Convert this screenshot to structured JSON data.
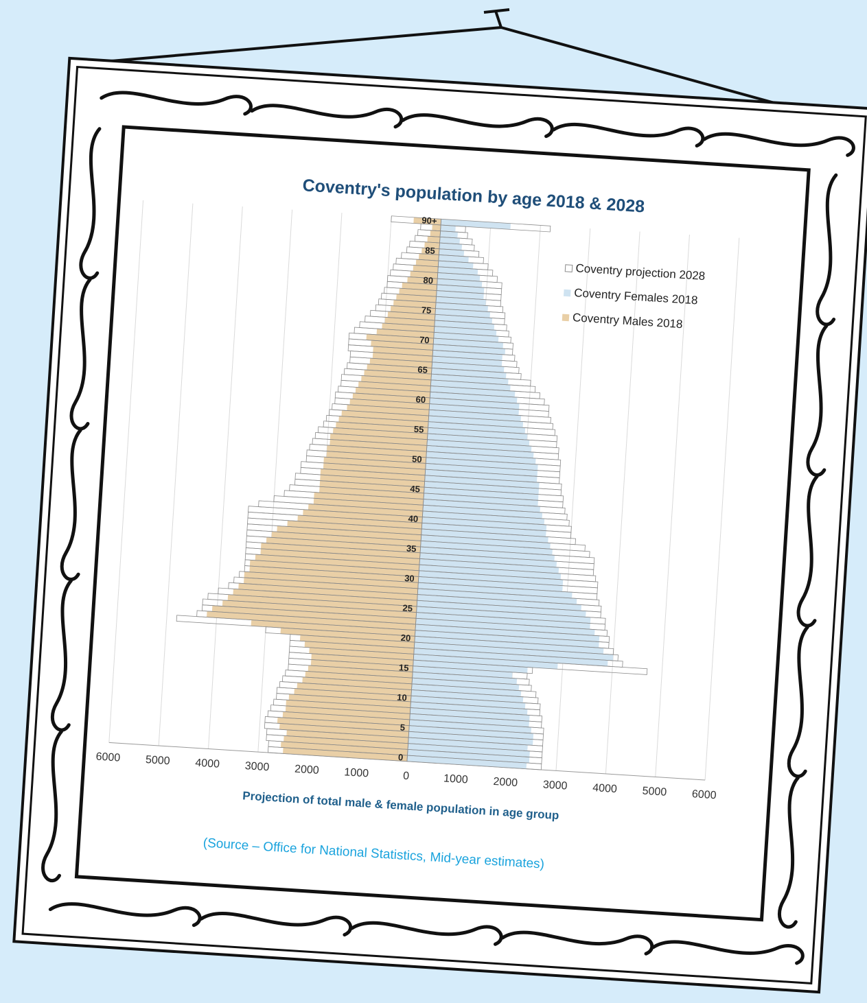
{
  "chart_data": {
    "type": "pyramid",
    "title": "Coventry's population by age 2018 & 2028",
    "xlabel": "Projection of total male & female population in age group",
    "source": "(Source – Office for National Statistics, Mid-year estimates)",
    "categories": [
      "0",
      null,
      null,
      null,
      null,
      "5",
      null,
      null,
      null,
      null,
      "10",
      null,
      null,
      null,
      null,
      "15",
      null,
      null,
      null,
      null,
      "20",
      null,
      null,
      null,
      null,
      "25",
      null,
      null,
      null,
      null,
      "30",
      null,
      null,
      null,
      null,
      "35",
      null,
      null,
      null,
      null,
      "40",
      null,
      null,
      null,
      null,
      "45",
      null,
      null,
      null,
      null,
      "50",
      null,
      null,
      null,
      null,
      "55",
      null,
      null,
      null,
      null,
      "60",
      null,
      null,
      null,
      null,
      "65",
      null,
      null,
      null,
      null,
      "70",
      null,
      null,
      null,
      null,
      "75",
      null,
      null,
      null,
      null,
      "80",
      null,
      null,
      null,
      null,
      "85",
      null,
      null,
      null,
      null,
      "90+"
    ],
    "series": [
      {
        "name": "Coventry projection 2028",
        "color": "#ffffff",
        "stroke": "#8a8a8a",
        "male": [
          -2800,
          -2800,
          -2850,
          -2850,
          -2900,
          -2900,
          -2850,
          -2800,
          -2750,
          -2700,
          -2700,
          -2650,
          -2600,
          -2550,
          -2500,
          -2500,
          -2500,
          -2500,
          -2500,
          -2500,
          -3000,
          -4800,
          -4400,
          -4300,
          -4300,
          -4200,
          -4000,
          -3800,
          -3700,
          -3600,
          -3500,
          -3500,
          -3500,
          -3500,
          -3500,
          -3500,
          -3500,
          -3500,
          -3500,
          -3500,
          -3500,
          -3300,
          -3000,
          -2800,
          -2700,
          -2600,
          -2600,
          -2500,
          -2500,
          -2400,
          -2400,
          -2350,
          -2300,
          -2250,
          -2200,
          -2100,
          -2050,
          -2000,
          -1950,
          -1900,
          -1900,
          -1850,
          -1800,
          -1800,
          -1750,
          -1700,
          -1650,
          -1650,
          -1700,
          -1700,
          -1700,
          -1600,
          -1500,
          -1400,
          -1300,
          -1200,
          -1150,
          -1100,
          -1050,
          -1000,
          -1000,
          -950,
          -900,
          -850,
          -750,
          -650,
          -600,
          -500,
          -450,
          -400,
          -1000
        ],
        "female": [
          2700,
          2700,
          2700,
          2700,
          2700,
          2700,
          2700,
          2650,
          2650,
          2600,
          2600,
          2550,
          2500,
          2400,
          2350,
          2300,
          2400,
          4700,
          4200,
          4100,
          4000,
          3900,
          3900,
          3850,
          3800,
          3800,
          3700,
          3700,
          3650,
          3600,
          3600,
          3600,
          3550,
          3500,
          3500,
          3500,
          3400,
          3300,
          3100,
          3000,
          3000,
          2950,
          2900,
          2850,
          2800,
          2800,
          2750,
          2750,
          2700,
          2700,
          2700,
          2700,
          2650,
          2650,
          2600,
          2600,
          2550,
          2500,
          2450,
          2400,
          2400,
          2300,
          2200,
          2100,
          2000,
          1800,
          1750,
          1700,
          1650,
          1600,
          1600,
          1550,
          1500,
          1450,
          1400,
          1400,
          1350,
          1300,
          1300,
          1300,
          1300,
          1200,
          1100,
          1000,
          900,
          800,
          700,
          650,
          550,
          500,
          2200
        ]
      },
      {
        "name": "Coventry Females 2018",
        "color": "#cfe3f1",
        "values": [
          2400,
          2450,
          2450,
          2400,
          2500,
          2500,
          2450,
          2400,
          2400,
          2350,
          2300,
          2250,
          2200,
          2150,
          2100,
          2000,
          2300,
          2900,
          3900,
          4000,
          3800,
          3700,
          3700,
          3600,
          3500,
          3500,
          3400,
          3300,
          3200,
          3100,
          2900,
          2900,
          2850,
          2800,
          2750,
          2700,
          2650,
          2600,
          2550,
          2500,
          2500,
          2450,
          2400,
          2350,
          2300,
          2300,
          2300,
          2300,
          2250,
          2250,
          2250,
          2200,
          2150,
          2100,
          2050,
          2000,
          1950,
          1900,
          1850,
          1800,
          1800,
          1750,
          1700,
          1600,
          1550,
          1500,
          1450,
          1400,
          1400,
          1450,
          1400,
          1300,
          1250,
          1200,
          1150,
          1100,
          1050,
          1000,
          950,
          950,
          900,
          850,
          800,
          700,
          600,
          500,
          450,
          400,
          350,
          300,
          1400
        ]
      },
      {
        "name": "Coventry Males 2018",
        "color": "#e9cfa6",
        "values": [
          -2500,
          -2550,
          -2500,
          -2450,
          -2600,
          -2650,
          -2550,
          -2500,
          -2500,
          -2450,
          -2350,
          -2300,
          -2200,
          -2150,
          -2100,
          -2050,
          -2050,
          -2100,
          -2200,
          -2300,
          -2700,
          -3300,
          -4200,
          -4100,
          -3900,
          -3800,
          -3700,
          -3600,
          -3500,
          -3500,
          -3400,
          -3400,
          -3300,
          -3200,
          -3200,
          -3100,
          -3000,
          -2900,
          -2700,
          -2500,
          -2400,
          -2300,
          -2200,
          -2200,
          -2100,
          -2100,
          -2100,
          -2100,
          -2050,
          -2050,
          -2000,
          -2000,
          -1950,
          -1950,
          -1900,
          -1850,
          -1800,
          -1750,
          -1650,
          -1600,
          -1550,
          -1500,
          -1450,
          -1400,
          -1350,
          -1300,
          -1250,
          -1200,
          -1200,
          -1250,
          -1350,
          -1150,
          -1050,
          -1000,
          -950,
          -900,
          -850,
          -800,
          -750,
          -700,
          -600,
          -550,
          -500,
          -450,
          -400,
          -350,
          -300,
          -250,
          -200,
          -170,
          -550
        ]
      }
    ],
    "xlim": [
      -6000,
      6000
    ],
    "xticks": [
      {
        "value": -6000,
        "label": "6000"
      },
      {
        "value": -5000,
        "label": "5000"
      },
      {
        "value": -4000,
        "label": "4000"
      },
      {
        "value": -3000,
        "label": "3000"
      },
      {
        "value": -2000,
        "label": "2000"
      },
      {
        "value": -1000,
        "label": "1000"
      },
      0,
      1000,
      2000,
      3000,
      4000,
      5000,
      6000
    ],
    "grid": true,
    "legend": "upper right"
  }
}
